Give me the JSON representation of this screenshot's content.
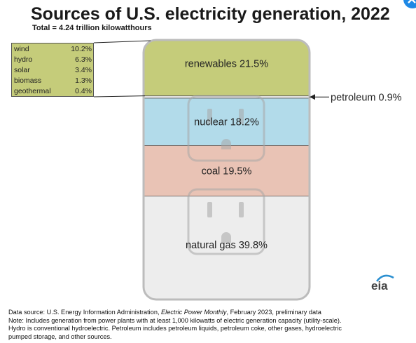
{
  "chart_data": {
    "type": "stacked-column",
    "title": "Sources of U.S. electricity generation, 2022",
    "subtitle": "Total = 4.24 trillion kilowatthours",
    "unit": "%",
    "segments": [
      {
        "name": "natural gas",
        "value": 39.8,
        "label": "natural gas 39.8%",
        "color": "#ededed"
      },
      {
        "name": "coal",
        "value": 19.5,
        "label": "coal 19.5%",
        "color": "#e9c3b5"
      },
      {
        "name": "nuclear",
        "value": 18.2,
        "label": "nuclear 18.2%",
        "color": "#b2dbea"
      },
      {
        "name": "petroleum",
        "value": 0.9,
        "label": "petroleum 0.9%",
        "color": "#e0e0e0"
      },
      {
        "name": "renewables",
        "value": 21.5,
        "label": "renewables 21.5%",
        "color": "#c5cc7a"
      }
    ],
    "renewables_breakdown": [
      {
        "name": "wind",
        "value": "10.2%"
      },
      {
        "name": "hydro",
        "value": "6.3%"
      },
      {
        "name": "solar",
        "value": "3.4%"
      },
      {
        "name": "biomass",
        "value": "1.3%"
      },
      {
        "name": "geothermal",
        "value": "0.4%"
      }
    ]
  },
  "logo_text": "eia",
  "footer": {
    "source_prefix": "Data source: U.S. Energy Information Administration, ",
    "source_publication": "Electric Power Monthly",
    "source_suffix": ", February 2023, preliminary data",
    "note_line1": "Note: Includes generation from power plants with at least 1,000 kilowatts of electric generation capacity (utility-scale).",
    "note_line2": "Hydro is conventional hydroelectric. Petroleum includes petroleum liquids, petroleum coke, other gases, hydroelectric",
    "note_line3": "pumped storage, and other sources."
  },
  "colors": {
    "outline": "#bcbcbc",
    "outlet_sketch": "#a8a8a8",
    "badge": "#1e88e5"
  }
}
